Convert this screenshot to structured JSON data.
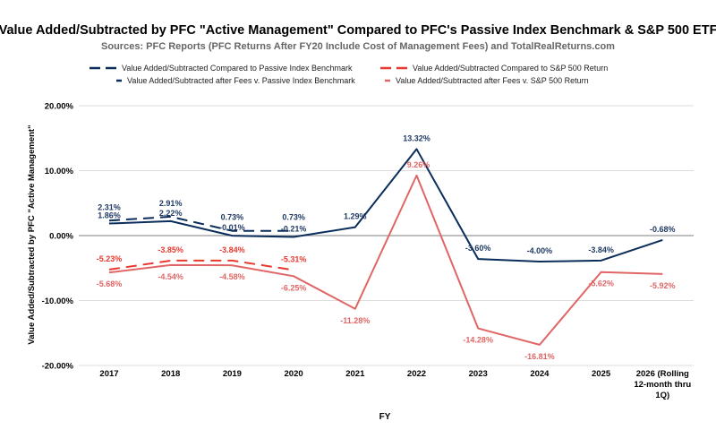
{
  "chart_data": {
    "type": "line",
    "title": "Value Added/Subtracted by PFC \"Active Management\" Compared to PFC's Passive Index Benchmark & S&P 500 ETF",
    "subtitle": "Sources: PFC Reports (PFC Returns After FY20 Include Cost of Management Fees) and TotalRealReturns.com",
    "xlabel": "FY",
    "ylabel": "Value Added/Subtracted by PFC \"Active Management\"",
    "ylim": [
      -20,
      20
    ],
    "yticks": [
      20,
      10,
      0,
      -10,
      -20
    ],
    "ytick_labels": [
      "20.00%",
      "10.00%",
      "0.00%",
      "-10.00%",
      "-20.00%"
    ],
    "categories": [
      "2017",
      "2018",
      "2019",
      "2020",
      "2021",
      "2022",
      "2023",
      "2024",
      "2025",
      "2026 (Rolling 12-month thru 1Q)"
    ],
    "legend_position": "top",
    "series": [
      {
        "name": "Value Added/Subtracted Compared to Passive Index Benchmark",
        "color": "#0b2d5b",
        "dashed": true,
        "values": [
          2.31,
          2.91,
          0.73,
          0.73,
          null,
          null,
          null,
          null,
          null,
          null
        ],
        "labels": [
          "2.31%",
          "2.91%",
          "0.73%",
          "0.73%",
          null,
          null,
          null,
          null,
          null,
          null
        ]
      },
      {
        "name": "Value Added/Subtracted Compared to S&P 500 Return",
        "color": "#e8392f",
        "dashed": true,
        "values": [
          -5.23,
          -3.85,
          -3.84,
          -5.31,
          null,
          null,
          null,
          null,
          null,
          null
        ],
        "labels": [
          "-5.23%",
          "-3.85%",
          "-3.84%",
          "-5.31%",
          null,
          null,
          null,
          null,
          null,
          null
        ]
      },
      {
        "name": "Value Added/Subtracted after Fees v. Passive Index Benchmark",
        "color": "#0b2d5b",
        "dashed": false,
        "values": [
          1.86,
          2.22,
          -0.01,
          -0.21,
          1.29,
          13.32,
          -3.6,
          -4.0,
          -3.84,
          -0.68
        ],
        "labels": [
          "1.86%",
          "2.22%",
          "-0.01%",
          "-0.21%",
          "1.29%",
          "13.32%",
          "-3.60%",
          "-4.00%",
          "-3.84%",
          "-0.68%"
        ]
      },
      {
        "name": "Value Added/Subtracted after Fees v. S&P 500 Return",
        "color": "#e06666",
        "dashed": false,
        "values": [
          -5.68,
          -4.54,
          -4.58,
          -6.25,
          -11.28,
          9.26,
          -14.28,
          -16.81,
          -5.62,
          -5.92
        ],
        "labels": [
          "-5.68%",
          "-4.54%",
          "-4.58%",
          "-6.25%",
          "-11.28%",
          "9.26%",
          "-14.28%",
          "-16.81%",
          "-5.62%",
          "-5.92%"
        ]
      }
    ]
  }
}
